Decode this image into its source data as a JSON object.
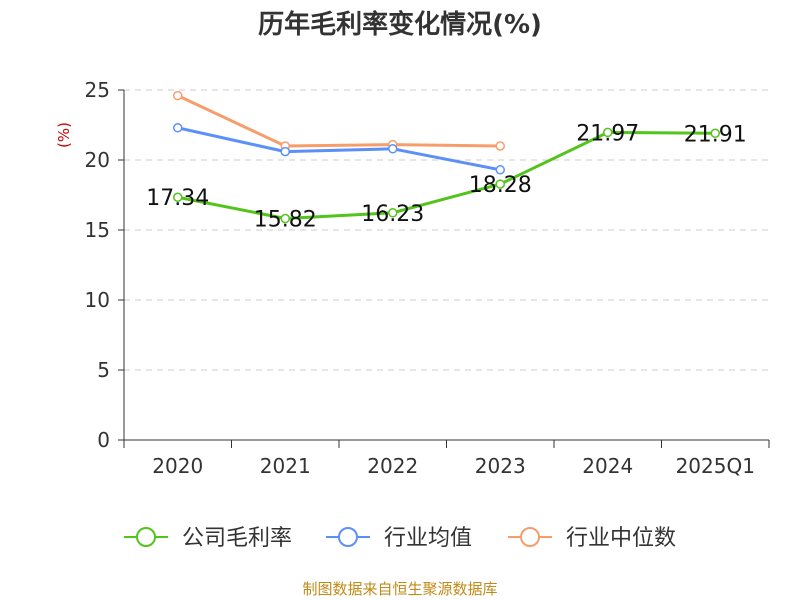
{
  "chart_data": {
    "type": "line",
    "title": "历年毛利率变化情况(%)",
    "ylabel": "(%)",
    "xlabel": "",
    "categories": [
      "2020",
      "2021",
      "2022",
      "2023",
      "2024",
      "2025Q1"
    ],
    "ylim": [
      0,
      25
    ],
    "yticks": [
      0,
      5,
      10,
      15,
      20,
      25
    ],
    "grid": true,
    "legend_position": "bottom",
    "series": [
      {
        "name": "公司毛利率",
        "color": "#52c41a",
        "values": [
          17.34,
          15.82,
          16.23,
          18.28,
          21.97,
          21.91
        ],
        "labels": [
          "17.34",
          "15.82",
          "16.23",
          "18.28",
          "21.97",
          "21.91"
        ]
      },
      {
        "name": "行业均值",
        "color": "#5b8ff9",
        "values": [
          22.3,
          20.6,
          20.8,
          19.3,
          null,
          null
        ]
      },
      {
        "name": "行业中位数",
        "color": "#f79d6b",
        "values": [
          24.6,
          21.0,
          21.1,
          21.0,
          null,
          null
        ]
      }
    ]
  },
  "footer": "制图数据来自恒生聚源数据库"
}
